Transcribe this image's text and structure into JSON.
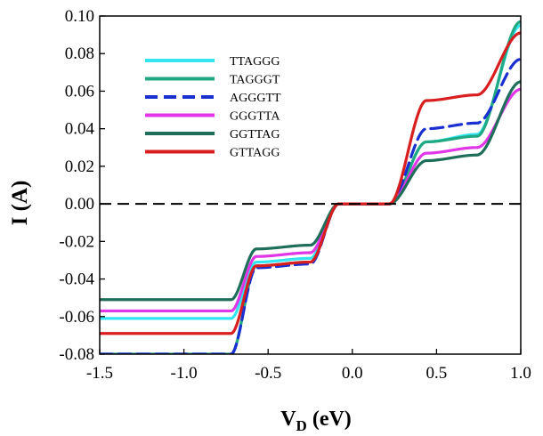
{
  "chart_data": {
    "type": "line",
    "title": "",
    "xlabel": "V",
    "xlabel_sub": "D",
    "xlabel_unit": "(eV)",
    "ylabel": "I (A)",
    "xlim": [
      -1.5,
      1.0
    ],
    "ylim": [
      -0.08,
      0.1
    ],
    "x_ticks": [
      -1.5,
      -1.0,
      -0.5,
      0.0,
      0.5,
      1.0
    ],
    "x_tick_labels": [
      "-1.5",
      "-1.0",
      "-0.5",
      "0.0",
      "0.5",
      "1.0"
    ],
    "y_ticks": [
      -0.08,
      -0.06,
      -0.04,
      -0.02,
      0.0,
      0.02,
      0.04,
      0.06,
      0.08,
      0.1
    ],
    "y_tick_labels": [
      "-0.08",
      "-0.06",
      "-0.04",
      "-0.02",
      "0.00",
      "0.02",
      "0.04",
      "0.06",
      "0.08",
      "0.10"
    ],
    "grid": false,
    "legend_position": "top-left",
    "reference_line": {
      "y": 0.0,
      "style": "dashed",
      "color": "#000000"
    },
    "series": [
      {
        "name": "TTAGGG",
        "color": "#33e5f0",
        "dashed": false,
        "x": [
          -1.5,
          -0.72,
          -0.57,
          -0.25,
          -0.08,
          0.22,
          0.44,
          0.74,
          1.0
        ],
        "y": [
          -0.061,
          -0.061,
          -0.031,
          -0.029,
          0.0,
          0.0,
          0.033,
          0.037,
          0.095
        ]
      },
      {
        "name": "TAGGGT",
        "color": "#20a882",
        "dashed": false,
        "x": [
          -1.5,
          -0.72,
          -0.57,
          -0.25,
          -0.08,
          0.22,
          0.44,
          0.74,
          1.0
        ],
        "y": [
          -0.08,
          -0.08,
          -0.033,
          -0.031,
          0.0,
          0.0,
          0.033,
          0.036,
          0.097
        ]
      },
      {
        "name": "AGGGTT",
        "color": "#1a2fd0",
        "dashed": true,
        "x": [
          -1.5,
          -0.72,
          -0.57,
          -0.25,
          -0.08,
          0.22,
          0.44,
          0.74,
          1.0
        ],
        "y": [
          -0.08,
          -0.08,
          -0.034,
          -0.032,
          0.0,
          0.0,
          0.04,
          0.043,
          0.077
        ]
      },
      {
        "name": "GGGTTA",
        "color": "#e036e8",
        "dashed": false,
        "x": [
          -1.5,
          -0.72,
          -0.57,
          -0.25,
          -0.08,
          0.22,
          0.44,
          0.74,
          1.0
        ],
        "y": [
          -0.057,
          -0.057,
          -0.028,
          -0.026,
          0.0,
          0.0,
          0.027,
          0.03,
          0.061
        ]
      },
      {
        "name": "GGTTAG",
        "color": "#1e6e5a",
        "dashed": false,
        "x": [
          -1.5,
          -0.72,
          -0.57,
          -0.25,
          -0.08,
          0.22,
          0.44,
          0.74,
          1.0
        ],
        "y": [
          -0.051,
          -0.051,
          -0.024,
          -0.022,
          0.0,
          0.0,
          0.023,
          0.026,
          0.065
        ]
      },
      {
        "name": "GTTAGG",
        "color": "#d81e1e",
        "dashed": false,
        "x": [
          -1.5,
          -0.72,
          -0.57,
          -0.25,
          -0.08,
          0.22,
          0.44,
          0.74,
          1.0
        ],
        "y": [
          -0.069,
          -0.069,
          -0.033,
          -0.031,
          0.0,
          0.0,
          0.055,
          0.058,
          0.091
        ]
      }
    ]
  }
}
